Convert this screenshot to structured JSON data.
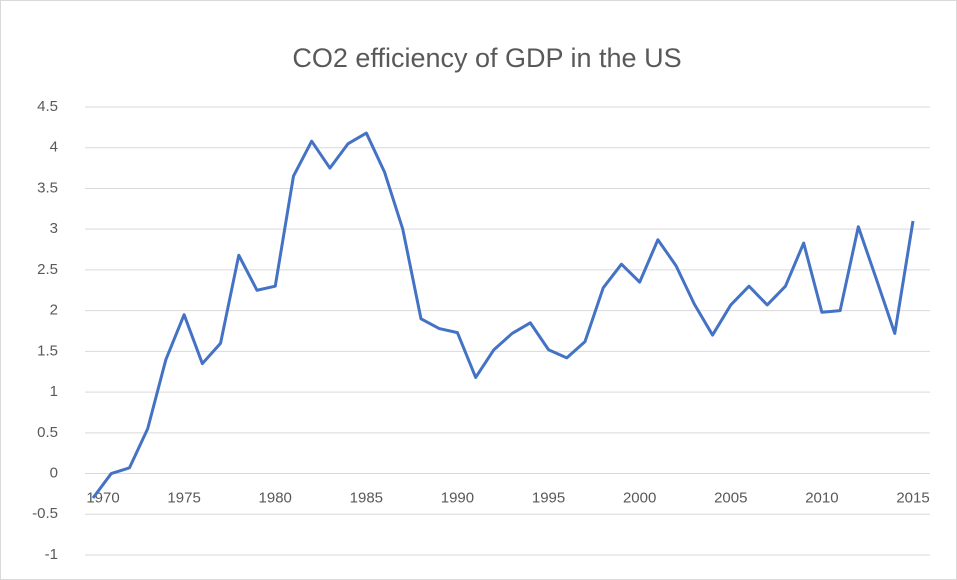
{
  "chart_data": {
    "type": "line",
    "title": "CO2 efficiency of GDP in the US",
    "x": [
      1970,
      1971,
      1972,
      1973,
      1974,
      1975,
      1976,
      1977,
      1978,
      1979,
      1980,
      1981,
      1982,
      1983,
      1984,
      1985,
      1986,
      1987,
      1988,
      1989,
      1990,
      1991,
      1992,
      1993,
      1994,
      1995,
      1996,
      1997,
      1998,
      1999,
      2000,
      2001,
      2002,
      2003,
      2004,
      2005,
      2006,
      2007,
      2008,
      2009,
      2010,
      2011,
      2012,
      2013,
      2014,
      2015
    ],
    "series": [
      {
        "color": "#4472c4",
        "values": [
          -0.3,
          0.0,
          0.07,
          0.55,
          1.4,
          1.95,
          1.35,
          1.6,
          2.68,
          2.25,
          2.3,
          3.65,
          4.08,
          3.75,
          4.05,
          4.18,
          3.7,
          3.0,
          1.9,
          1.78,
          1.73,
          1.18,
          1.52,
          1.72,
          1.85,
          1.52,
          1.42,
          1.62,
          2.28,
          2.57,
          2.35,
          2.87,
          2.55,
          2.08,
          1.7,
          2.07,
          2.3,
          2.07,
          2.3,
          2.83,
          1.98,
          2.0,
          3.03,
          2.38,
          1.72,
          3.1
        ]
      }
    ],
    "xlim": [
      1970,
      2015
    ],
    "xticks": [
      1970,
      1975,
      1980,
      1985,
      1990,
      1995,
      2000,
      2005,
      2010,
      2015
    ],
    "ylim": [
      -1,
      4.5
    ],
    "yticks": [
      -1,
      -0.5,
      0,
      0.5,
      1,
      1.5,
      2,
      2.5,
      3,
      3.5,
      4,
      4.5
    ],
    "grid": true
  }
}
